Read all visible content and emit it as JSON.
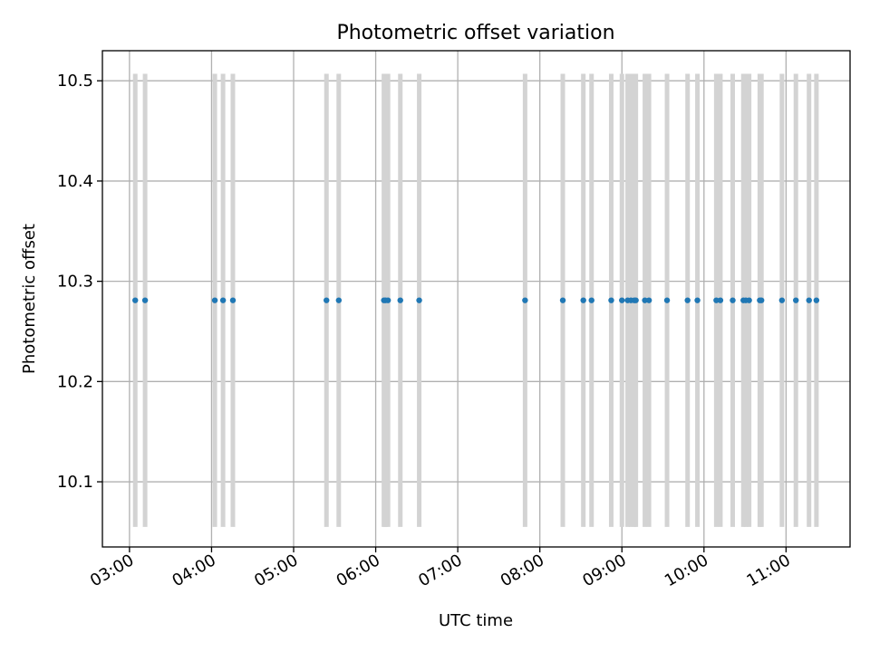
{
  "chart_data": {
    "type": "scatter",
    "title": "Photometric offset variation",
    "xlabel": "UTC time",
    "ylabel": "Photometric offset",
    "xlim_hours": [
      2.67,
      11.78
    ],
    "ylim": [
      10.035,
      10.53
    ],
    "xtick_hours": [
      3,
      4,
      5,
      6,
      7,
      8,
      9,
      10,
      11
    ],
    "xtick_labels": [
      "03:00",
      "04:00",
      "05:00",
      "06:00",
      "07:00",
      "08:00",
      "09:00",
      "10:00",
      "11:00"
    ],
    "yticks": [
      10.1,
      10.2,
      10.3,
      10.4,
      10.5
    ],
    "ytick_labels": [
      "10.1",
      "10.2",
      "10.3",
      "10.4",
      "10.5"
    ],
    "grid": true,
    "series": [
      {
        "marker_color": "#1f77b4",
        "errorbar_color": "#d3d3d3",
        "y_value": 10.281,
        "err_low": 10.055,
        "err_high": 10.507,
        "x_hours": [
          3.07,
          3.19,
          4.04,
          4.14,
          4.26,
          5.4,
          5.55,
          6.1,
          6.12,
          6.15,
          6.3,
          6.53,
          7.82,
          8.28,
          8.53,
          8.63,
          8.87,
          9.0,
          9.07,
          9.11,
          9.15,
          9.17,
          9.28,
          9.33,
          9.55,
          9.8,
          9.92,
          10.15,
          10.2,
          10.35,
          10.48,
          10.51,
          10.55,
          10.68,
          10.7,
          10.95,
          11.12,
          11.28,
          11.37
        ]
      }
    ]
  }
}
